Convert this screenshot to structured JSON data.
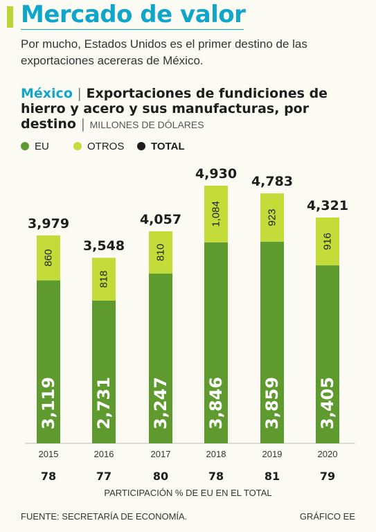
{
  "header": {
    "title": "Mercado de valor",
    "subtitle": "Por mucho, Estados Unidos es el primer destino de las exportaciones acereras de México."
  },
  "chart_heading": {
    "country": "México",
    "separator": "|",
    "title": "Exportaciones de fundiciones de hierro y acero y sus manufacturas, por destino",
    "unit": "MILLONES DE DÓLARES"
  },
  "legend": [
    {
      "label": "EU",
      "color": "#5e9a2e"
    },
    {
      "label": "OTROS",
      "color": "#c4dc3a"
    },
    {
      "label": "TOTAL",
      "color": "#1d1d1b"
    }
  ],
  "chart_data": {
    "type": "bar",
    "stacked": true,
    "categories": [
      "2015",
      "2016",
      "2017",
      "2018",
      "2019",
      "2020"
    ],
    "series": [
      {
        "name": "EU",
        "values": [
          3119,
          2731,
          3247,
          3846,
          3859,
          3405
        ],
        "labels": [
          "3,119",
          "2,731",
          "3,247",
          "3,846",
          "3,859",
          "3,405"
        ],
        "color": "#5e9a2e"
      },
      {
        "name": "OTROS",
        "values": [
          860,
          818,
          810,
          1084,
          923,
          916
        ],
        "labels": [
          "860",
          "818",
          "810",
          "1,084",
          "923",
          "916"
        ],
        "color": "#c4dc3a"
      }
    ],
    "totals": [
      3979,
      3548,
      4057,
      4930,
      4783,
      4321
    ],
    "total_labels": [
      "3,979",
      "3,548",
      "4,057",
      "4,930",
      "4,783",
      "4,321"
    ],
    "ylim": [
      0,
      5200
    ],
    "grid": false
  },
  "shares": {
    "values": [
      "78",
      "77",
      "80",
      "78",
      "81",
      "79"
    ],
    "caption": "PARTICIPACIÓN % DE EU EN EL TOTAL"
  },
  "footer": {
    "source": "FUENTE: SECRETARÍA DE ECONOMÍA.",
    "credit": "GRÁFICO EE"
  }
}
